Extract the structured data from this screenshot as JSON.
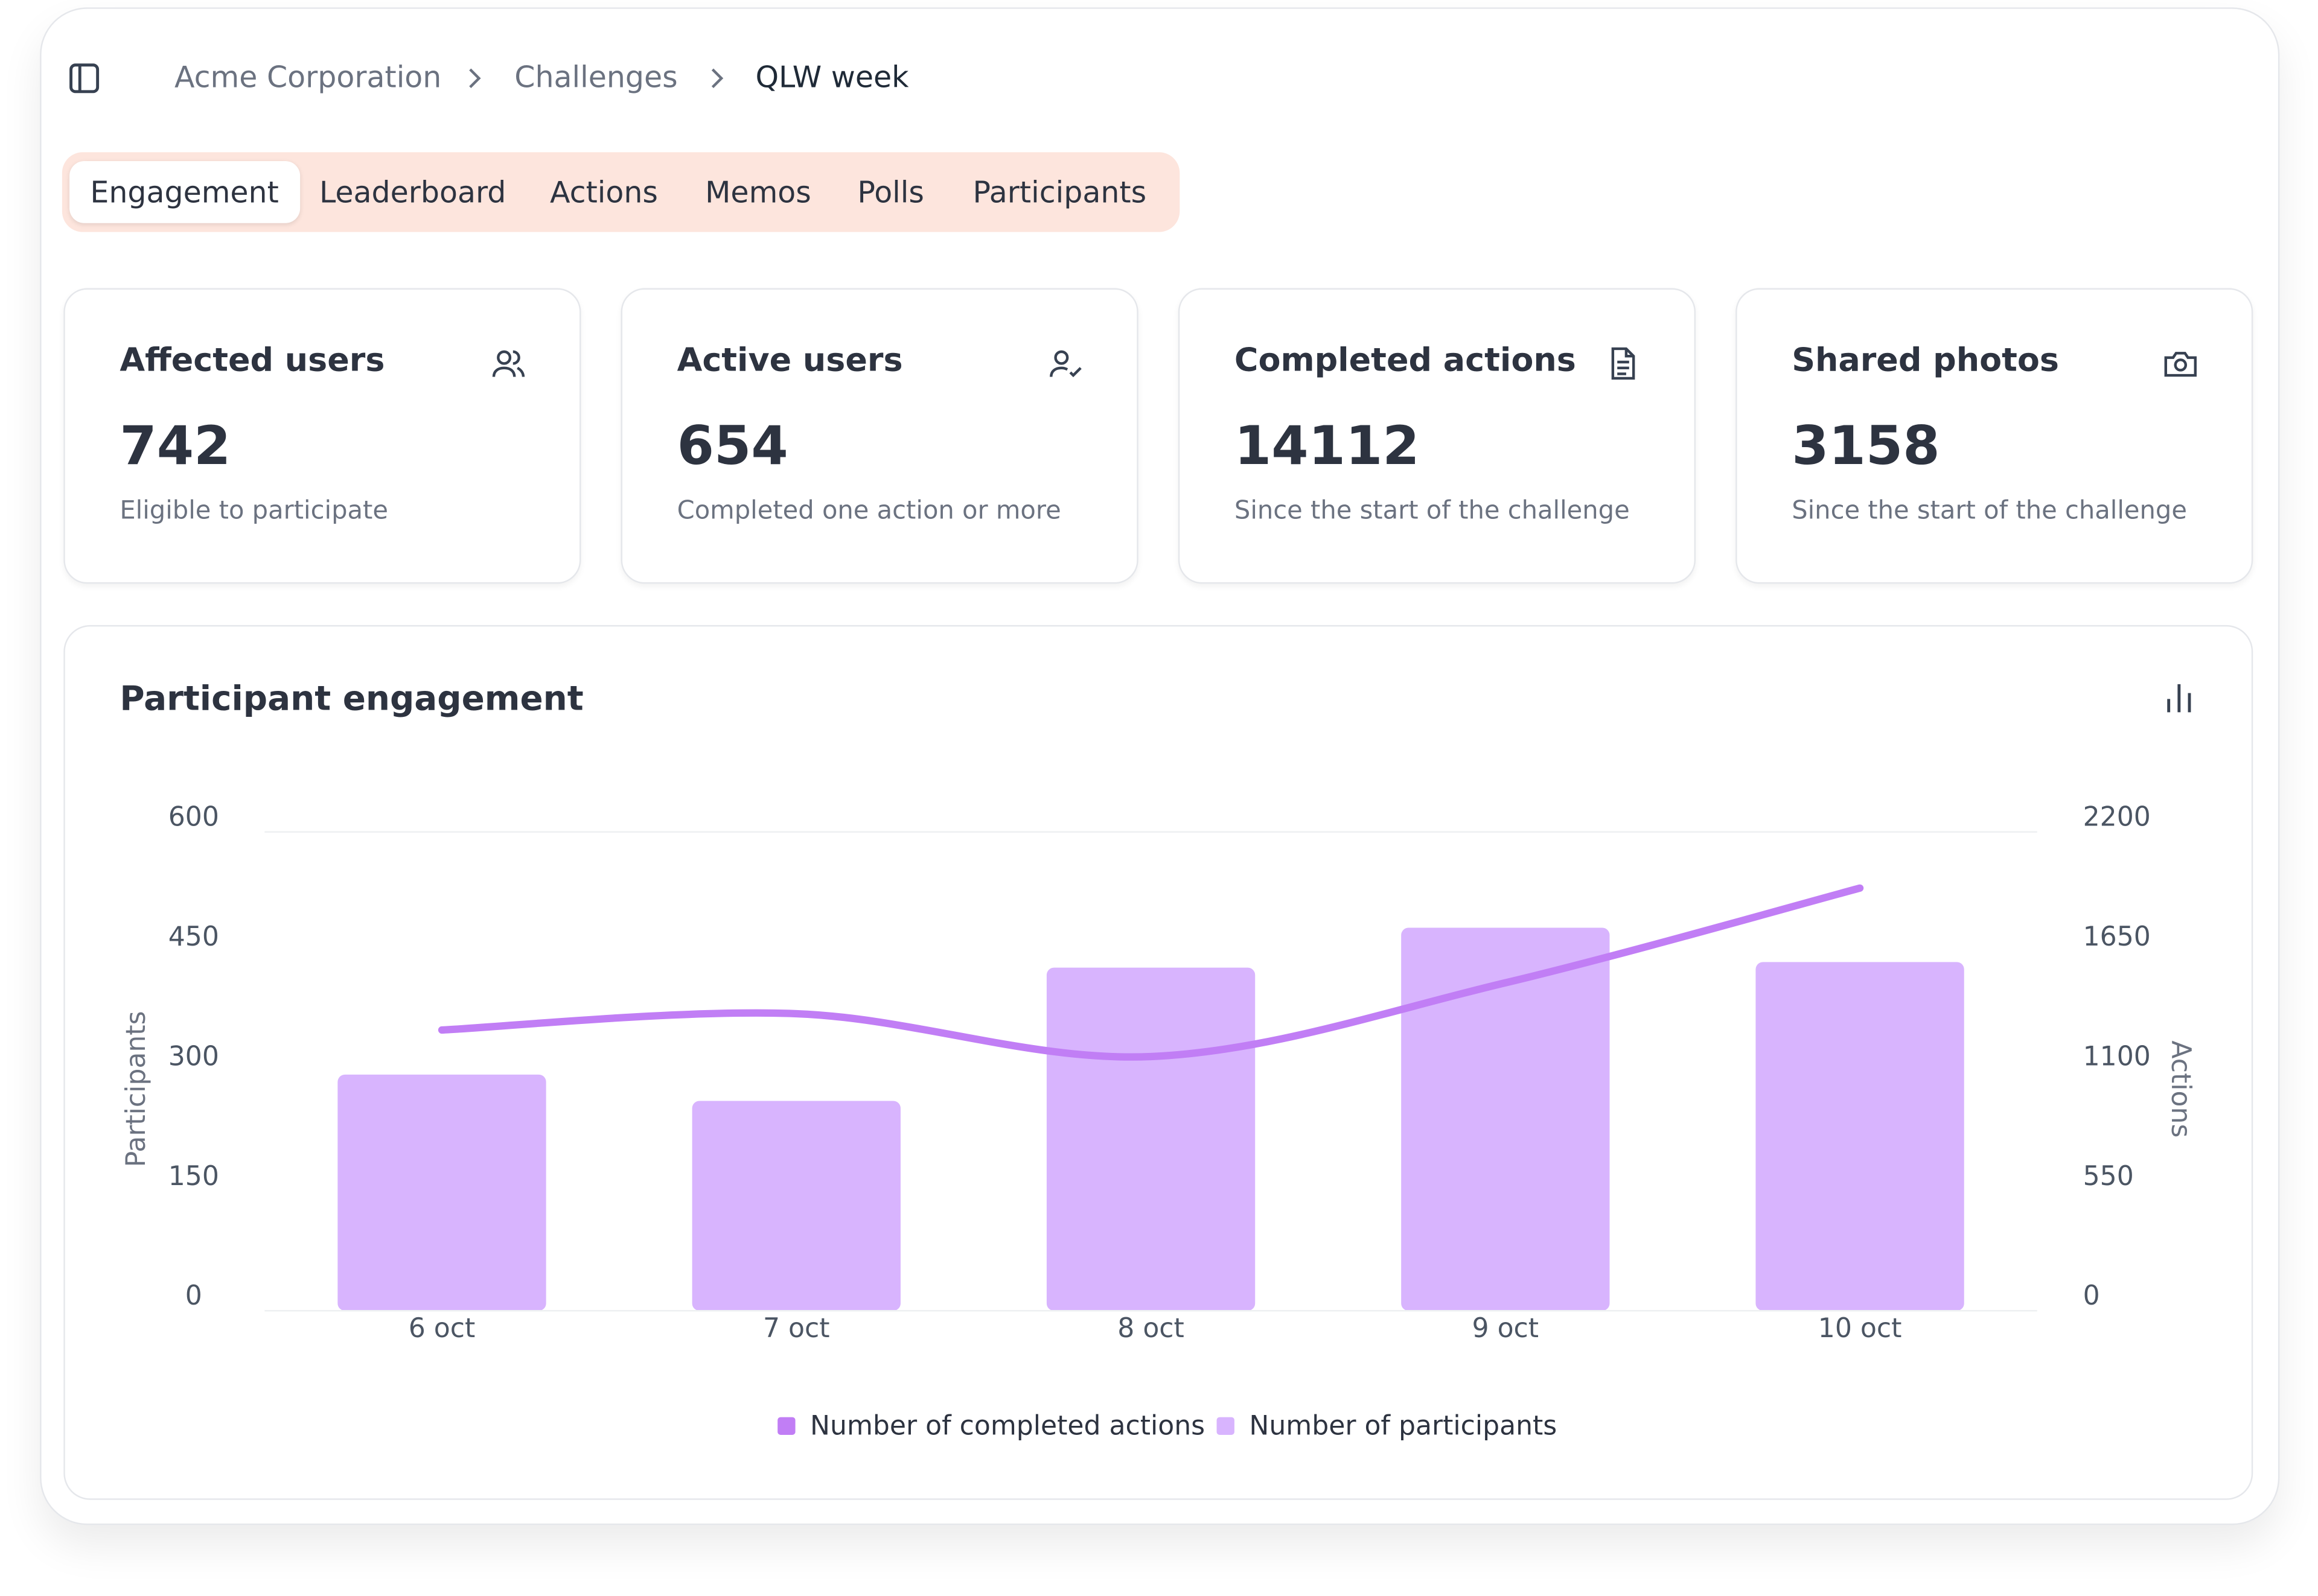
{
  "breadcrumb": [
    "Acme Corporation",
    "Challenges",
    "QLW week"
  ],
  "tabs": [
    "Engagement",
    "Leaderboard",
    "Actions",
    "Memos",
    "Polls",
    "Participants"
  ],
  "active_tab": 0,
  "stats": [
    {
      "title": "Affected users",
      "value": "742",
      "caption": "Eligible to participate"
    },
    {
      "title": "Active users",
      "value": "654",
      "caption": "Completed one action or more"
    },
    {
      "title": "Completed actions",
      "value": "14112",
      "caption": "Since the start of the challenge"
    },
    {
      "title": "Shared photos",
      "value": "3158",
      "caption": "Since the start of the challenge"
    }
  ],
  "chart_data": {
    "type": "bar",
    "title": "Participant engagement",
    "categories": [
      "6 oct",
      "7 oct",
      "8 oct",
      "9 oct",
      "10 oct"
    ],
    "series": [
      {
        "name": "Number of completed actions",
        "type": "line",
        "axis": "y2",
        "color": "#c17ef5",
        "values": [
          1290,
          1365,
          1168,
          1507,
          1942
        ]
      },
      {
        "name": "Number of participants",
        "type": "bar",
        "color": "#d8b4fe",
        "values": [
          296,
          263,
          430,
          480,
          437
        ]
      }
    ],
    "ylabel": "Participants",
    "y2label": "Actions",
    "ylim": [
      0,
      600
    ],
    "yticks": [
      0,
      150,
      300,
      450,
      600
    ],
    "y2lim": [
      0,
      2200
    ],
    "y2ticks": [
      0,
      550,
      1100,
      1650,
      2200
    ]
  }
}
